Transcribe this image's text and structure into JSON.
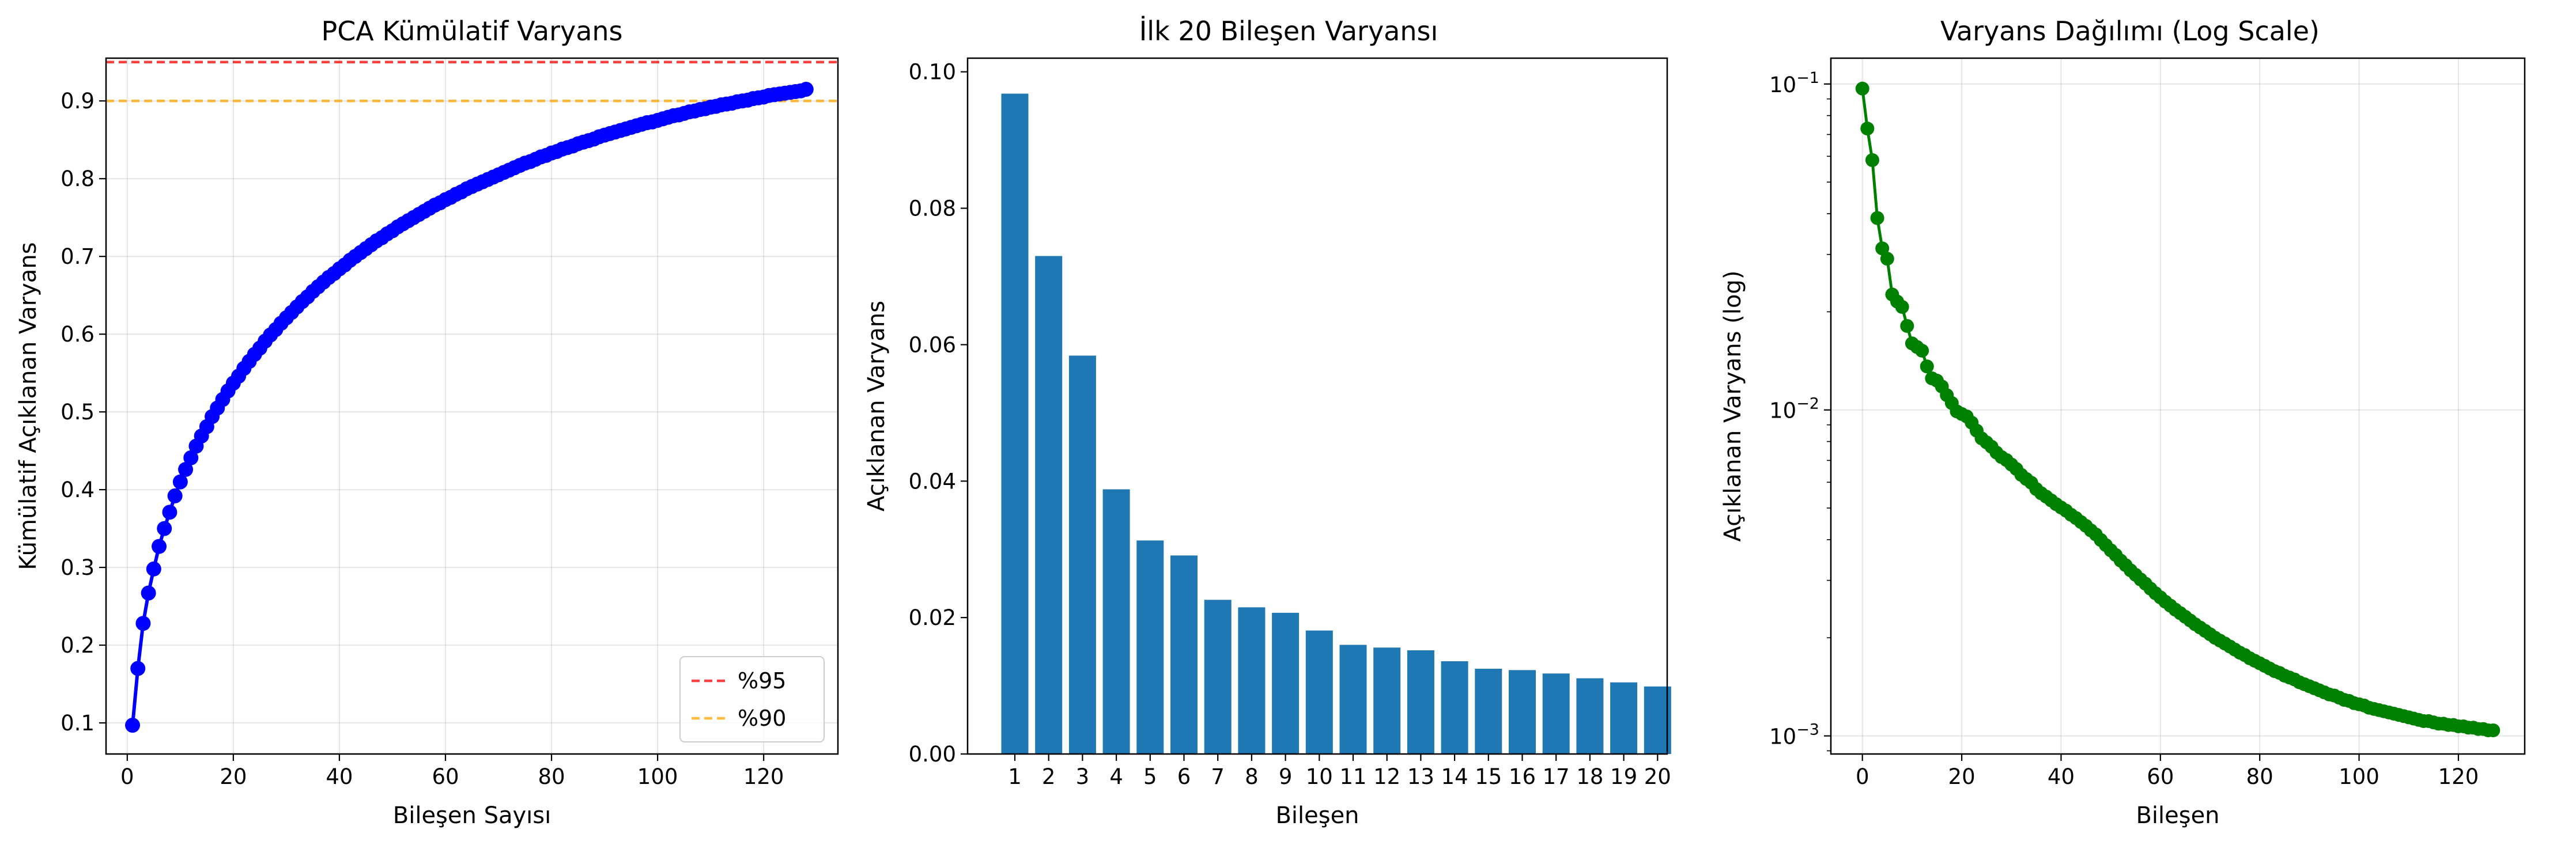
{
  "colors": {
    "cumulative": "#0000ff",
    "bars": "#1f77b4",
    "log_line": "#008000",
    "ref95": "#ff0000",
    "ref90": "#ffa500"
  },
  "chart_data": [
    {
      "type": "line",
      "title": "PCA Kümülatif Varyans",
      "xlabel": "Bileşen Sayısı",
      "ylabel": "Kümülatif Açıklanan Varyans",
      "xlim": [
        -4,
        134
      ],
      "ylim": [
        0.06,
        0.955
      ],
      "xticks": [
        0,
        20,
        40,
        60,
        80,
        100,
        120
      ],
      "yticks": [
        0.1,
        0.2,
        0.3,
        0.4,
        0.5,
        0.6,
        0.7,
        0.8,
        0.9
      ],
      "grid": true,
      "legend_position": "lower right",
      "reference_lines": [
        {
          "label": "%95",
          "y": 0.95,
          "style": "dashed",
          "color": "#ff0000"
        },
        {
          "label": "%90",
          "y": 0.9,
          "style": "dashed",
          "color": "#ffa500"
        }
      ],
      "series": [
        {
          "x": [
            1,
            2,
            3,
            4,
            5,
            6,
            7,
            8,
            9,
            10,
            11,
            12,
            13,
            14,
            15,
            16,
            17,
            18,
            19,
            20,
            21,
            22,
            23,
            24,
            25,
            26,
            27,
            28,
            29,
            30,
            31,
            32,
            33,
            34,
            35,
            36,
            37,
            38,
            39,
            40,
            41,
            42,
            43,
            44,
            45,
            46,
            47,
            48,
            49,
            50,
            51,
            52,
            53,
            54,
            55,
            56,
            57,
            58,
            59,
            60,
            61,
            62,
            63,
            64,
            65,
            66,
            67,
            68,
            69,
            70,
            71,
            72,
            73,
            74,
            75,
            76,
            77,
            78,
            79,
            80,
            81,
            82,
            83,
            84,
            85,
            86,
            87,
            88,
            89,
            90,
            91,
            92,
            93,
            94,
            95,
            96,
            97,
            98,
            99,
            100,
            101,
            102,
            103,
            104,
            105,
            106,
            107,
            108,
            109,
            110,
            111,
            112,
            113,
            114,
            115,
            116,
            117,
            118,
            119,
            120,
            121,
            122,
            123,
            124,
            125,
            126,
            127,
            128
          ],
          "values": [
            0.097,
            0.17,
            0.228,
            0.267,
            0.298,
            0.327,
            0.35,
            0.371,
            0.392,
            0.41,
            0.426,
            0.441,
            0.456,
            0.469,
            0.481,
            0.494,
            0.505,
            0.516,
            0.527,
            0.537,
            0.546,
            0.556,
            0.565,
            0.574,
            0.582,
            0.591,
            0.599,
            0.606,
            0.614,
            0.621,
            0.628,
            0.635,
            0.642,
            0.648,
            0.655,
            0.661,
            0.667,
            0.673,
            0.678,
            0.684,
            0.689,
            0.695,
            0.7,
            0.705,
            0.71,
            0.715,
            0.72,
            0.724,
            0.729,
            0.733,
            0.738,
            0.742,
            0.746,
            0.75,
            0.754,
            0.758,
            0.762,
            0.766,
            0.769,
            0.773,
            0.776,
            0.78,
            0.783,
            0.787,
            0.79,
            0.793,
            0.796,
            0.799,
            0.802,
            0.805,
            0.808,
            0.811,
            0.814,
            0.817,
            0.82,
            0.822,
            0.825,
            0.828,
            0.83,
            0.833,
            0.835,
            0.838,
            0.84,
            0.842,
            0.845,
            0.847,
            0.849,
            0.851,
            0.854,
            0.856,
            0.858,
            0.86,
            0.862,
            0.864,
            0.866,
            0.868,
            0.87,
            0.872,
            0.873,
            0.875,
            0.877,
            0.879,
            0.881,
            0.882,
            0.884,
            0.886,
            0.887,
            0.889,
            0.89,
            0.892,
            0.893,
            0.895,
            0.896,
            0.897,
            0.899,
            0.9,
            0.901,
            0.903,
            0.904,
            0.905,
            0.907,
            0.908,
            0.909,
            0.91,
            0.911,
            0.912,
            0.913,
            0.915
          ]
        }
      ]
    },
    {
      "type": "bar",
      "title": "İlk 20 Bileşen Varyansı",
      "xlabel": "Bileşen",
      "ylabel": "Açıklanan Varyans",
      "ylim": [
        0,
        0.102
      ],
      "yticks": [
        0.0,
        0.02,
        0.04,
        0.06,
        0.08,
        0.1
      ],
      "ytick_labels": [
        "0.00",
        "0.02",
        "0.04",
        "0.06",
        "0.08",
        "0.10"
      ],
      "grid": false,
      "categories": [
        "1",
        "2",
        "3",
        "4",
        "5",
        "6",
        "7",
        "8",
        "9",
        "10",
        "11",
        "12",
        "13",
        "14",
        "15",
        "16",
        "17",
        "18",
        "19",
        "20"
      ],
      "values": [
        0.0968,
        0.073,
        0.0584,
        0.0388,
        0.0313,
        0.0291,
        0.0226,
        0.0215,
        0.0207,
        0.0181,
        0.016,
        0.0156,
        0.0152,
        0.0136,
        0.0125,
        0.0123,
        0.0118,
        0.0111,
        0.0105,
        0.0099
      ]
    },
    {
      "type": "line",
      "title": "Varyans Dağılımı (Log Scale)",
      "xlabel": "Bileşen",
      "ylabel": "Açıklanan Varyans (log)",
      "scale_y": "log",
      "xlim": [
        -6.35,
        133.35
      ],
      "ylim": [
        0.00088,
        0.12
      ],
      "xticks": [
        0,
        20,
        40,
        60,
        80,
        100,
        120
      ],
      "yticks": [
        0.001,
        0.01,
        0.1
      ],
      "ytick_labels": [
        {
          "base": "10",
          "exp": "−3"
        },
        {
          "base": "10",
          "exp": "−2"
        },
        {
          "base": "10",
          "exp": "−1"
        }
      ],
      "grid": true,
      "series": [
        {
          "x": [
            0,
            1,
            2,
            3,
            4,
            5,
            6,
            7,
            8,
            9,
            10,
            11,
            12,
            13,
            14,
            15,
            16,
            17,
            18,
            19,
            20,
            21,
            22,
            23,
            24,
            25,
            26,
            27,
            28,
            29,
            30,
            31,
            32,
            33,
            34,
            35,
            36,
            37,
            38,
            39,
            40,
            41,
            42,
            43,
            44,
            45,
            46,
            47,
            48,
            49,
            50,
            51,
            52,
            53,
            54,
            55,
            56,
            57,
            58,
            59,
            60,
            61,
            62,
            63,
            64,
            65,
            66,
            67,
            68,
            69,
            70,
            71,
            72,
            73,
            74,
            75,
            76,
            77,
            78,
            79,
            80,
            81,
            82,
            83,
            84,
            85,
            86,
            87,
            88,
            89,
            90,
            91,
            92,
            93,
            94,
            95,
            96,
            97,
            98,
            99,
            100,
            101,
            102,
            103,
            104,
            105,
            106,
            107,
            108,
            109,
            110,
            111,
            112,
            113,
            114,
            115,
            116,
            117,
            118,
            119,
            120,
            121,
            122,
            123,
            124,
            125,
            126,
            127
          ],
          "values": [
            0.0968,
            0.073,
            0.0584,
            0.0388,
            0.0313,
            0.0291,
            0.0226,
            0.0215,
            0.0207,
            0.0181,
            0.016,
            0.0156,
            0.0152,
            0.0136,
            0.0125,
            0.0123,
            0.0118,
            0.0111,
            0.0105,
            0.0099,
            0.00972,
            0.00955,
            0.00914,
            0.00864,
            0.00818,
            0.00795,
            0.00771,
            0.0074,
            0.00717,
            0.00702,
            0.0068,
            0.00659,
            0.00632,
            0.00614,
            0.00598,
            0.00572,
            0.00555,
            0.00542,
            0.00528,
            0.00514,
            0.00502,
            0.00491,
            0.00477,
            0.00466,
            0.00453,
            0.00441,
            0.00427,
            0.00415,
            0.00399,
            0.00385,
            0.00371,
            0.00359,
            0.00345,
            0.00334,
            0.00322,
            0.00312,
            0.00302,
            0.00293,
            0.00283,
            0.00274,
            0.00266,
            0.00258,
            0.00251,
            0.00244,
            0.00238,
            0.00232,
            0.00226,
            0.0022,
            0.00215,
            0.0021,
            0.00205,
            0.002,
            0.00196,
            0.00192,
            0.00188,
            0.00184,
            0.0018,
            0.00177,
            0.00173,
            0.0017,
            0.00167,
            0.00164,
            0.00161,
            0.00158,
            0.00156,
            0.00153,
            0.00151,
            0.00149,
            0.00146,
            0.00144,
            0.00142,
            0.0014,
            0.00138,
            0.00136,
            0.00134,
            0.00133,
            0.00131,
            0.00129,
            0.00128,
            0.00126,
            0.00125,
            0.00124,
            0.00122,
            0.00121,
            0.0012,
            0.00119,
            0.00118,
            0.00117,
            0.00116,
            0.00115,
            0.00114,
            0.00113,
            0.00112,
            0.00111,
            0.00111,
            0.0011,
            0.00109,
            0.00109,
            0.00108,
            0.00108,
            0.00107,
            0.00107,
            0.00106,
            0.00106,
            0.00105,
            0.00105,
            0.00104,
            0.00104
          ]
        }
      ]
    }
  ]
}
